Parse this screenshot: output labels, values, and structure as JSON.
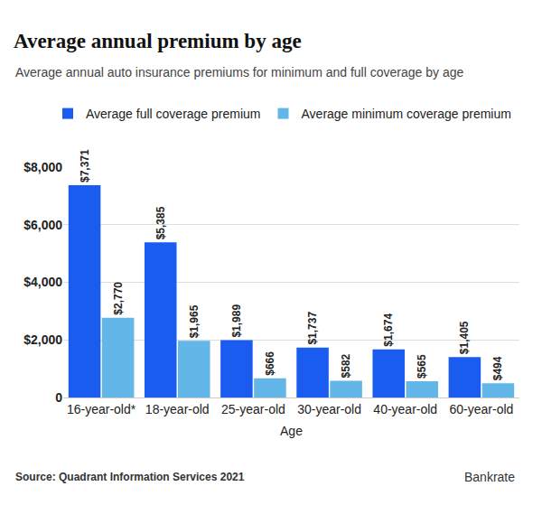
{
  "chart_data": {
    "type": "bar",
    "title": "Average annual premium by age",
    "subtitle": "Average annual auto insurance premiums for minimum and full coverage by age",
    "x_label": "Age",
    "categories": [
      "16-year-old*",
      "18-year-old",
      "25-year-old",
      "30-year-old",
      "40-year-old",
      "60-year-old"
    ],
    "series": [
      {
        "name": "Average full coverage premium",
        "color": "#1a5cf0",
        "values": [
          7371,
          5385,
          1989,
          1737,
          1674,
          1405
        ],
        "value_labels": [
          "$7,371",
          "$5,385",
          "$1,989",
          "$1,737",
          "$1,674",
          "$1,405"
        ]
      },
      {
        "name": "Average minimum coverage premium",
        "color": "#62b6e8",
        "values": [
          2770,
          1965,
          666,
          582,
          565,
          494
        ],
        "value_labels": [
          "$2,770",
          "$1,965",
          "$666",
          "$582",
          "$565",
          "$494"
        ]
      }
    ],
    "ylim": [
      0,
      8000
    ],
    "yticks": [
      0,
      {
        "value": 2000,
        "label": "$2,000"
      },
      {
        "value": 4000,
        "label": "$4,000"
      },
      {
        "value": 6000,
        "label": "$6,000"
      },
      {
        "value": 8000,
        "label": "$8,000"
      }
    ],
    "grid": true,
    "legend": "top left",
    "data_labels": true,
    "annotations": [
      "Source: Quadrant Information Services 2021",
      "Bankrate"
    ]
  }
}
